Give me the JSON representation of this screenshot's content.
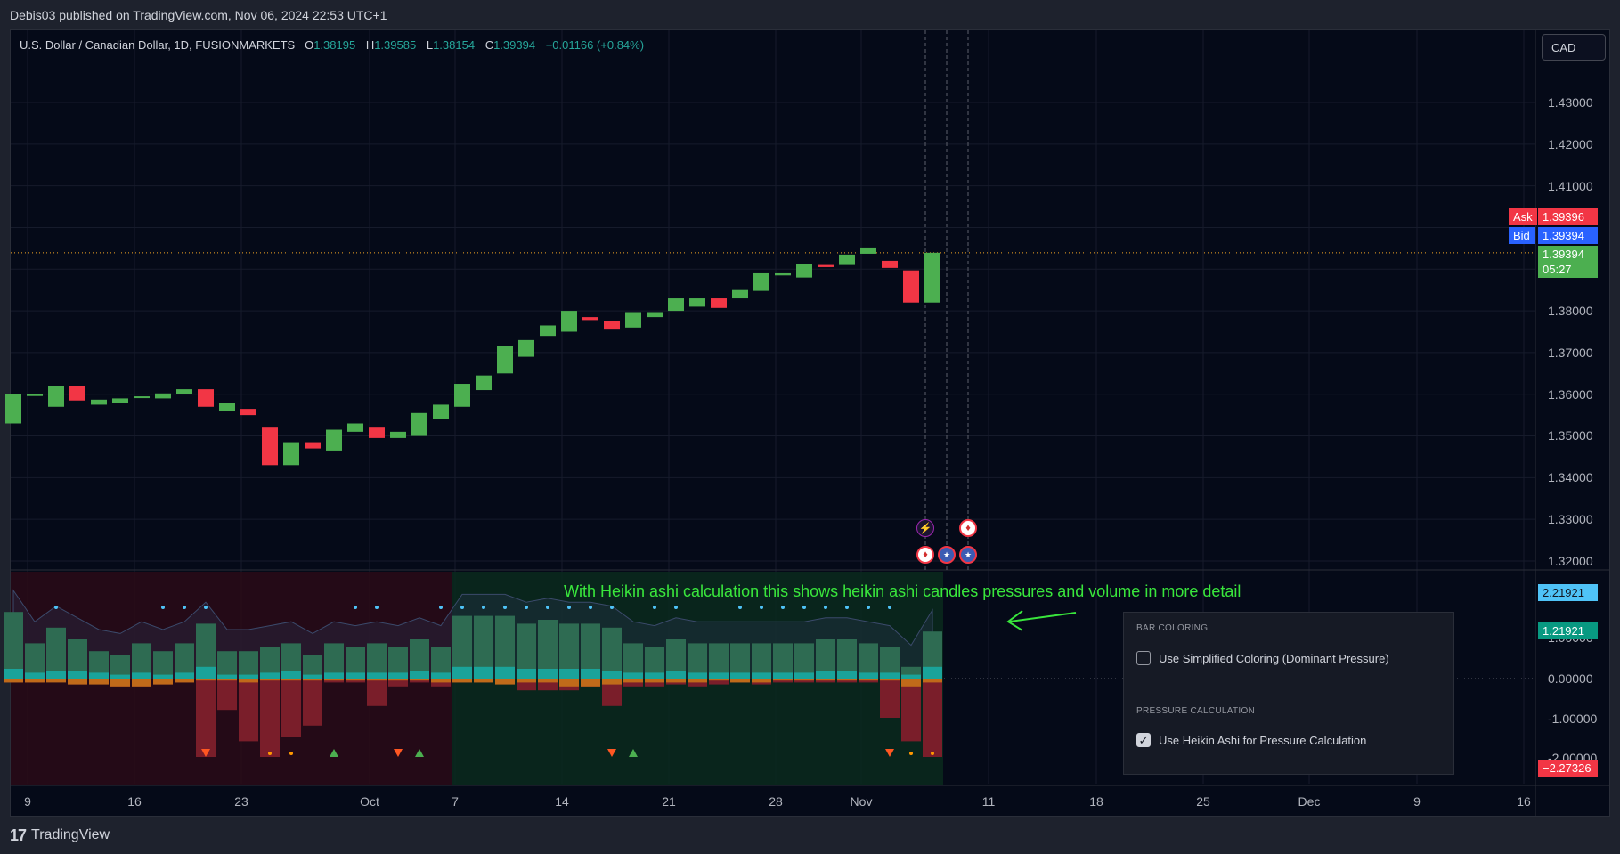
{
  "header": {
    "published_text": "Debis03 published on TradingView.com, Nov 06, 2024 22:53 UTC+1"
  },
  "symbol": {
    "name": "U.S. Dollar / Canadian Dollar, 1D, FUSIONMARKETS",
    "o_label": "O",
    "o": "1.38195",
    "h_label": "H",
    "h": "1.39585",
    "l_label": "L",
    "l": "1.38154",
    "c_label": "C",
    "c": "1.39394",
    "change": "+0.01166 (+0.84%)"
  },
  "currency_button": "CAD",
  "price_axis": [
    "1.43000",
    "1.42000",
    "1.41000",
    "1.38000",
    "1.37000",
    "1.36000",
    "1.35000",
    "1.34000",
    "1.33000",
    "1.32000"
  ],
  "badges": {
    "ask_label": "Ask",
    "ask": "1.39396",
    "bid_label": "Bid",
    "bid": "1.39394",
    "last": "1.39394",
    "countdown": "05:27"
  },
  "indicator_axis": [
    "1.00000",
    "0.00000",
    "-1.00000",
    "-2.00000"
  ],
  "indicator_badges": {
    "top": "2.21921",
    "mid": "1.21921",
    "bottom": "−2.27326"
  },
  "time_axis": [
    "9",
    "16",
    "23",
    "Oct",
    "7",
    "14",
    "21",
    "28",
    "Nov",
    "11",
    "18",
    "25",
    "Dec",
    "9",
    "16"
  ],
  "annotation": "With Heikin ashi calculation  this shows heikin ashi candles pressures and volume in more detail",
  "settings": {
    "section1": "BAR COLORING",
    "option1": "Use Simplified Coloring (Dominant Pressure)",
    "option1_checked": false,
    "section2": "PRESSURE CALCULATION",
    "option2": "Use Heikin Ashi for Pressure Calculation",
    "option2_checked": true
  },
  "footer": {
    "logo_mark": "17",
    "brand": "TradingView"
  },
  "colors": {
    "up": "#4caf50",
    "down": "#f23645",
    "accent": "#2962ff",
    "annotation": "#39e63c"
  },
  "chart_data": {
    "type": "candlestick",
    "title": "U.S. Dollar / Canadian Dollar, 1D, FUSIONMARKETS",
    "ylim": [
      1.315,
      1.44
    ],
    "candles": [
      {
        "o": 1.353,
        "c": 1.36
      },
      {
        "o": 1.3597,
        "c": 1.36
      },
      {
        "o": 1.357,
        "c": 1.362
      },
      {
        "o": 1.362,
        "c": 1.3585
      },
      {
        "o": 1.3575,
        "c": 1.3587
      },
      {
        "o": 1.358,
        "c": 1.359
      },
      {
        "o": 1.3592,
        "c": 1.3595
      },
      {
        "o": 1.359,
        "c": 1.3602
      },
      {
        "o": 1.36,
        "c": 1.3612
      },
      {
        "o": 1.3612,
        "c": 1.357
      },
      {
        "o": 1.356,
        "c": 1.358
      },
      {
        "o": 1.3565,
        "c": 1.355
      },
      {
        "o": 1.352,
        "c": 1.343
      },
      {
        "o": 1.343,
        "c": 1.3485
      },
      {
        "o": 1.3485,
        "c": 1.347
      },
      {
        "o": 1.3465,
        "c": 1.3515
      },
      {
        "o": 1.351,
        "c": 1.353
      },
      {
        "o": 1.352,
        "c": 1.3495
      },
      {
        "o": 1.3495,
        "c": 1.351
      },
      {
        "o": 1.35,
        "c": 1.3555
      },
      {
        "o": 1.354,
        "c": 1.3575
      },
      {
        "o": 1.357,
        "c": 1.3625
      },
      {
        "o": 1.361,
        "c": 1.3645
      },
      {
        "o": 1.365,
        "c": 1.3715
      },
      {
        "o": 1.369,
        "c": 1.373
      },
      {
        "o": 1.374,
        "c": 1.3765
      },
      {
        "o": 1.375,
        "c": 1.38
      },
      {
        "o": 1.3785,
        "c": 1.3778
      },
      {
        "o": 1.3775,
        "c": 1.3755
      },
      {
        "o": 1.376,
        "c": 1.3797
      },
      {
        "o": 1.3785,
        "c": 1.3797
      },
      {
        "o": 1.38,
        "c": 1.383
      },
      {
        "o": 1.381,
        "c": 1.383
      },
      {
        "o": 1.383,
        "c": 1.3807
      },
      {
        "o": 1.383,
        "c": 1.385
      },
      {
        "o": 1.3848,
        "c": 1.389
      },
      {
        "o": 1.3885,
        "c": 1.389
      },
      {
        "o": 1.388,
        "c": 1.3912
      },
      {
        "o": 1.391,
        "c": 1.3905
      },
      {
        "o": 1.391,
        "c": 1.3935
      },
      {
        "o": 1.3937,
        "c": 1.3952
      },
      {
        "o": 1.392,
        "c": 1.3903
      },
      {
        "o": 1.3897,
        "c": 1.382
      },
      {
        "o": 1.382,
        "c": 1.39394
      }
    ],
    "indicator": {
      "ylim": [
        -2.3,
        2.35
      ],
      "bull": [
        1.7,
        0.9,
        1.3,
        1.0,
        0.7,
        0.6,
        0.9,
        0.7,
        0.9,
        1.4,
        0.7,
        0.7,
        0.8,
        0.9,
        0.6,
        0.9,
        0.8,
        0.9,
        0.8,
        1.0,
        0.8,
        1.6,
        1.6,
        1.6,
        1.4,
        1.5,
        1.4,
        1.4,
        1.3,
        0.9,
        0.8,
        1.0,
        0.9,
        0.9,
        0.9,
        0.9,
        0.9,
        0.9,
        1.0,
        1.0,
        0.9,
        0.8,
        0.3,
        1.2
      ],
      "bull_vol": [
        0.25,
        0.15,
        0.2,
        0.2,
        0.15,
        0.1,
        0.15,
        0.1,
        0.15,
        0.3,
        0.1,
        0.1,
        0.15,
        0.2,
        0.1,
        0.15,
        0.15,
        0.15,
        0.15,
        0.2,
        0.15,
        0.3,
        0.3,
        0.3,
        0.25,
        0.25,
        0.25,
        0.25,
        0.2,
        0.15,
        0.15,
        0.2,
        0.15,
        0.15,
        0.15,
        0.15,
        0.15,
        0.15,
        0.2,
        0.2,
        0.15,
        0.15,
        0.1,
        0.3
      ],
      "bear": [
        -0.1,
        -0.1,
        -0.05,
        -0.15,
        -0.1,
        -0.2,
        -0.2,
        -0.15,
        -0.1,
        -2.0,
        -0.8,
        -1.6,
        -2.0,
        -1.5,
        -1.2,
        -0.1,
        -0.1,
        -0.7,
        -0.2,
        -0.1,
        -0.2,
        -0.1,
        -0.1,
        -0.1,
        -0.3,
        -0.3,
        -0.3,
        -0.2,
        -0.7,
        -0.2,
        -0.2,
        -0.15,
        -0.2,
        -0.15,
        -0.1,
        -0.15,
        -0.1,
        -0.1,
        -0.1,
        -0.1,
        -0.1,
        -1.0,
        -1.6,
        -2.0
      ],
      "orange": [
        -0.1,
        -0.1,
        -0.1,
        -0.15,
        -0.15,
        -0.2,
        -0.2,
        -0.15,
        -0.1,
        -0.05,
        -0.05,
        -0.1,
        -0.05,
        -0.05,
        -0.05,
        -0.05,
        -0.05,
        -0.05,
        -0.05,
        -0.05,
        -0.1,
        -0.1,
        -0.1,
        -0.15,
        -0.1,
        -0.1,
        -0.2,
        -0.2,
        -0.15,
        -0.1,
        -0.1,
        -0.1,
        -0.1,
        -0.05,
        -0.1,
        -0.1,
        -0.05,
        -0.05,
        -0.05,
        -0.05,
        -0.05,
        -0.05,
        -0.2,
        -0.1
      ],
      "dots_top": [
        2,
        7,
        8,
        9,
        16,
        17,
        20,
        21,
        22,
        23,
        24,
        25,
        26,
        27,
        28,
        30,
        31,
        34,
        35,
        36,
        37,
        38,
        39,
        40,
        41
      ],
      "markers": [
        {
          "i": 9,
          "kind": "down"
        },
        {
          "i": 12,
          "kind": "dot"
        },
        {
          "i": 13,
          "kind": "dot"
        },
        {
          "i": 15,
          "kind": "up"
        },
        {
          "i": 18,
          "kind": "down"
        },
        {
          "i": 19,
          "kind": "up"
        },
        {
          "i": 28,
          "kind": "down"
        },
        {
          "i": 29,
          "kind": "up"
        },
        {
          "i": 41,
          "kind": "down"
        },
        {
          "i": 42,
          "kind": "dot"
        },
        {
          "i": 43,
          "kind": "dot"
        }
      ]
    }
  }
}
